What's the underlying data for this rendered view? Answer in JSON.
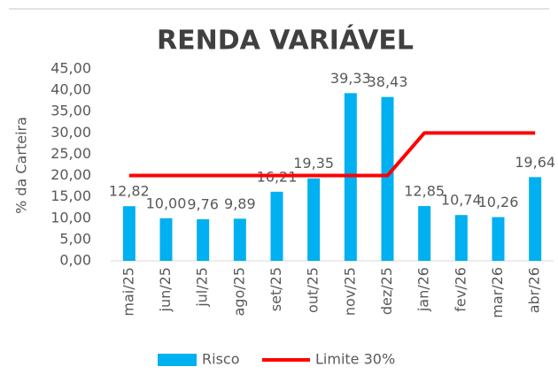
{
  "chart_data": {
    "type": "bar",
    "title": "RENDA VARIÁVEL",
    "y_label": "% da Carteira",
    "categories": [
      "mai/25",
      "jun/25",
      "jul/25",
      "ago/25",
      "set/25",
      "out/25",
      "nov/25",
      "dez/25",
      "jan/26",
      "fev/26",
      "mar/26",
      "abr/26"
    ],
    "series": [
      {
        "name": "Risco",
        "type": "bar",
        "color": "#00b0f0",
        "values": [
          12.82,
          10.0,
          9.76,
          9.89,
          16.21,
          19.35,
          39.33,
          38.43,
          12.85,
          10.74,
          10.26,
          19.64
        ],
        "value_labels": [
          "12,82",
          "10,00",
          "9,76",
          "9,89",
          "16,21",
          "19,35",
          "39,33",
          "38,43",
          "12,85",
          "10,74",
          "10,26",
          "19,64"
        ]
      },
      {
        "name": "Limite 30%",
        "type": "line",
        "color": "#ff0000",
        "values": [
          20,
          20,
          20,
          20,
          20,
          20,
          20,
          20,
          30,
          30,
          30,
          30
        ]
      }
    ],
    "ylim": [
      0,
      45
    ],
    "yticks": [
      {
        "value": 0,
        "label": "0,00"
      },
      {
        "value": 5,
        "label": "5,00"
      },
      {
        "value": 10,
        "label": "10,00"
      },
      {
        "value": 15,
        "label": "15,00"
      },
      {
        "value": 20,
        "label": "20,00"
      },
      {
        "value": 25,
        "label": "25,00"
      },
      {
        "value": 30,
        "label": "30,00"
      },
      {
        "value": 35,
        "label": "35,00"
      },
      {
        "value": 40,
        "label": "40,00"
      },
      {
        "value": 45,
        "label": "45,00"
      }
    ],
    "legend": "bottom"
  }
}
